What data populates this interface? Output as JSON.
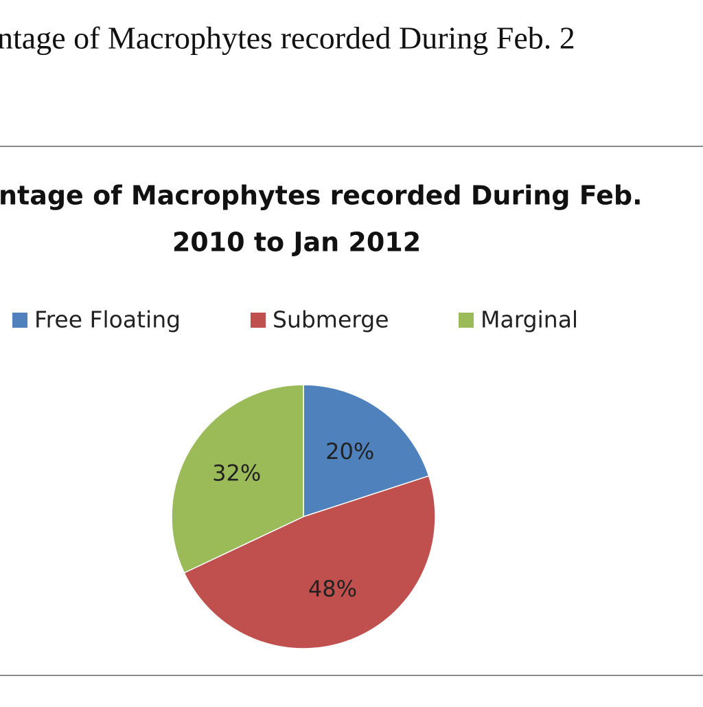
{
  "caption": "ntage of Macrophytes recorded During Feb. 2",
  "chart_data": {
    "type": "pie",
    "title": [
      "ntage of Macrophytes recorded During Feb.",
      "2010 to Jan 2012"
    ],
    "categories": [
      "Free Floating",
      "Submerge",
      "Marginal"
    ],
    "values": [
      20,
      48,
      32
    ],
    "value_labels": [
      "20%",
      "48%",
      "32%"
    ],
    "colors": [
      "#4f81bd",
      "#c0504d",
      "#9bbb59"
    ]
  }
}
